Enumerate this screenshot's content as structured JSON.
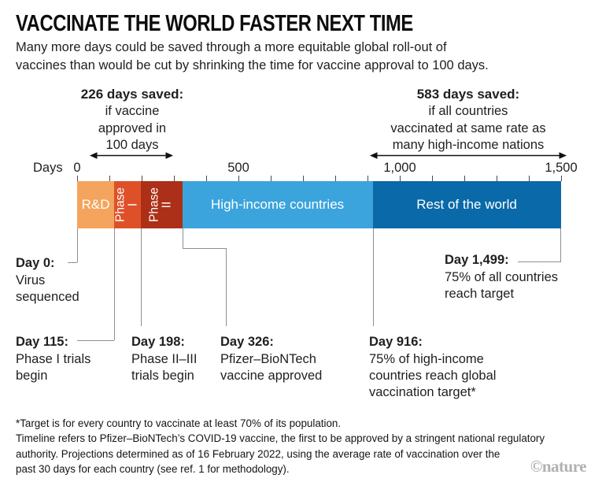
{
  "title": "VACCINATE THE WORLD FASTER NEXT TIME",
  "subtitle": "Many more days could be saved through a more equitable global roll-out of\nvaccines than would be cut by shrinking the time for vaccine approval to 100 days.",
  "annotations": {
    "left": {
      "headline": "226 days saved:",
      "detail": "if vaccine\napproved in\n100 days",
      "days_saved": 226
    },
    "right": {
      "headline": "583 days saved:",
      "detail": "if all countries\nvaccinated at same rate as\nmany high-income nations",
      "days_saved": 583
    }
  },
  "axis": {
    "unit_label": "Days",
    "min": 0,
    "max": 1500,
    "minor_tick_interval": 100,
    "major_ticks": [
      {
        "value": 0,
        "label": "0"
      },
      {
        "value": 500,
        "label": "500"
      },
      {
        "value": 1000,
        "label": "1,000"
      },
      {
        "value": 1500,
        "label": "1,500"
      }
    ]
  },
  "chart_data": {
    "type": "bar",
    "subtype": "single-row-timeline",
    "unit": "days",
    "xlim": [
      0,
      1500
    ],
    "segments": [
      {
        "label": "R&D",
        "start": 0,
        "end": 115,
        "color": "#F4A45C",
        "orientation": "horizontal"
      },
      {
        "label": "Phase I",
        "start": 115,
        "end": 198,
        "color": "#DE5128",
        "orientation": "vertical"
      },
      {
        "label": "Phase II",
        "start": 198,
        "end": 326,
        "color": "#AC2F17",
        "orientation": "vertical"
      },
      {
        "label": "High-income countries",
        "start": 326,
        "end": 916,
        "color": "#3BA4DC",
        "orientation": "horizontal"
      },
      {
        "label": "Rest of the world",
        "start": 916,
        "end": 1499,
        "color": "#0A69A9",
        "orientation": "horizontal"
      }
    ],
    "milestones": [
      {
        "day": 0,
        "title": "Day 0:",
        "description": "Virus sequenced"
      },
      {
        "day": 115,
        "title": "Day 115:",
        "description": "Phase I trials begin"
      },
      {
        "day": 198,
        "title": "Day 198:",
        "description": "Phase II–III trials begin"
      },
      {
        "day": 326,
        "title": "Day 326:",
        "description": "Pfizer–BioNTech vaccine approved"
      },
      {
        "day": 916,
        "title": "Day 916:",
        "description": "75% of high-income countries reach global vaccination target*"
      },
      {
        "day": 1499,
        "title": "Day 1,499:",
        "description": "75% of all countries reach target"
      }
    ]
  },
  "footnote": "*Target is for every country to vaccinate at least 70% of its population.\nTimeline refers to Pfizer–BioNTech’s COVID-19 vaccine, the first to be approved by a stringent national regulatory\nauthority. Projections determined as of 16 February 2022, using the average rate of vaccination over the\npast 30 days for each country (see ref. 1 for methodology).",
  "credit": "©nature"
}
